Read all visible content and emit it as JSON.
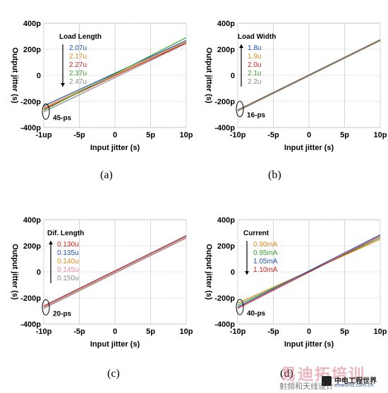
{
  "chart_data": [
    {
      "type": "line",
      "panel_caption": "(a)",
      "xlabel": "Input jitter (s)",
      "ylabel": "Output jitter (s)",
      "xlim": [
        -10,
        10
      ],
      "ylim": [
        -400,
        400
      ],
      "xticks": [
        "-1up",
        "-5p",
        "0",
        "5p",
        "10p"
      ],
      "yticks": [
        "400p",
        "200p",
        "0",
        "-200p",
        "-400p"
      ],
      "legend_title": "Load Length",
      "annotation": "45-ps",
      "grid": true,
      "series": [
        {
          "name": "2.07u",
          "color": "#1f4fb4",
          "x": [
            -10,
            10
          ],
          "y": [
            -235,
            268
          ]
        },
        {
          "name": "2.17u",
          "color": "#e08a1e",
          "x": [
            -10,
            10
          ],
          "y": [
            -248,
            258
          ]
        },
        {
          "name": "2.27u",
          "color": "#d62020",
          "x": [
            -10,
            10
          ],
          "y": [
            -258,
            250
          ]
        },
        {
          "name": "2.37u",
          "color": "#38a12c",
          "x": [
            -10,
            10
          ],
          "y": [
            -268,
            290
          ]
        },
        {
          "name": "2.47u",
          "color": "#8a8a8a",
          "x": [
            -10,
            10
          ],
          "y": [
            -280,
            245
          ]
        }
      ]
    },
    {
      "type": "line",
      "panel_caption": "(b)",
      "xlabel": "Input jitter (s)",
      "ylabel": "Output jitter (s)",
      "xlim": [
        -10,
        10
      ],
      "ylim": [
        -400,
        400
      ],
      "xticks": [
        "-10p",
        "-5p",
        "0",
        "5p",
        "10p"
      ],
      "yticks": [
        "400p",
        "200p",
        "0",
        "-200p",
        "-400p"
      ],
      "legend_title": "Load Width",
      "annotation": "16-ps",
      "grid": true,
      "series": [
        {
          "name": "1.8u",
          "color": "#1f4fb4",
          "x": [
            -10,
            10
          ],
          "y": [
            -266,
            274
          ]
        },
        {
          "name": "1.9u",
          "color": "#e08a1e",
          "x": [
            -10,
            10
          ],
          "y": [
            -268,
            272
          ]
        },
        {
          "name": "2.0u",
          "color": "#d62020",
          "x": [
            -10,
            10
          ],
          "y": [
            -270,
            270
          ]
        },
        {
          "name": "2.1u",
          "color": "#38a12c",
          "x": [
            -10,
            10
          ],
          "y": [
            -272,
            268
          ]
        },
        {
          "name": "2.2u",
          "color": "#8a8a8a",
          "x": [
            -10,
            10
          ],
          "y": [
            -274,
            266
          ]
        }
      ]
    },
    {
      "type": "line",
      "panel_caption": "(c)",
      "xlabel": "Input jitter (s)",
      "ylabel": "Output jitter (s)",
      "xlim": [
        -10,
        10
      ],
      "ylim": [
        -400,
        400
      ],
      "xticks": [
        "-10p",
        "-5p",
        "0",
        "5p",
        "10p"
      ],
      "yticks": [
        "400p",
        "200p",
        "0",
        "-200p",
        "-400p"
      ],
      "legend_title": "Dif. Length",
      "annotation": "20-ps",
      "grid": true,
      "series": [
        {
          "name": "0.130u",
          "color": "#d62020",
          "x": [
            -10,
            10
          ],
          "y": [
            -262,
            278
          ]
        },
        {
          "name": "0.135u",
          "color": "#1f4fb4",
          "x": [
            -10,
            10
          ],
          "y": [
            -265,
            275
          ]
        },
        {
          "name": "0.140u",
          "color": "#e08a1e",
          "x": [
            -10,
            10
          ],
          "y": [
            -268,
            272
          ]
        },
        {
          "name": "0.145u",
          "color": "#f08aa0",
          "x": [
            -10,
            10
          ],
          "y": [
            -272,
            268
          ]
        },
        {
          "name": "0.150u",
          "color": "#8a8a8a",
          "x": [
            -10,
            10
          ],
          "y": [
            -280,
            260
          ]
        }
      ]
    },
    {
      "type": "line",
      "panel_caption": "(d)",
      "xlabel": "Input jitter (s)",
      "ylabel": "Output jitter (s)",
      "xlim": [
        -10,
        10
      ],
      "ylim": [
        -400,
        400
      ],
      "xticks": [
        "-10p",
        "-5p",
        "0",
        "5p",
        "10p"
      ],
      "yticks": [
        "400p",
        "200p",
        "0",
        "-200p",
        "-400p"
      ],
      "legend_title": "Current",
      "annotation": "40-ps",
      "grid": true,
      "series": [
        {
          "name": "0.90mA",
          "color": "#e08a1e",
          "x": [
            -10,
            10
          ],
          "y": [
            -240,
            250
          ]
        },
        {
          "name": "0.95mA",
          "color": "#38a12c",
          "x": [
            -10,
            10
          ],
          "y": [
            -255,
            262
          ]
        },
        {
          "name": "1.05mA",
          "color": "#1f4fb4",
          "x": [
            -10,
            10
          ],
          "y": [
            -270,
            285
          ]
        },
        {
          "name": "1.10mA",
          "color": "#d62020",
          "x": [
            -10,
            10
          ],
          "y": [
            -280,
            275
          ]
        }
      ]
    }
  ],
  "watermark": {
    "line1": "易迪拓培训",
    "line2": "中电工程世界",
    "url": "eeworld.com.cn",
    "line3": "射频和天线设计"
  }
}
